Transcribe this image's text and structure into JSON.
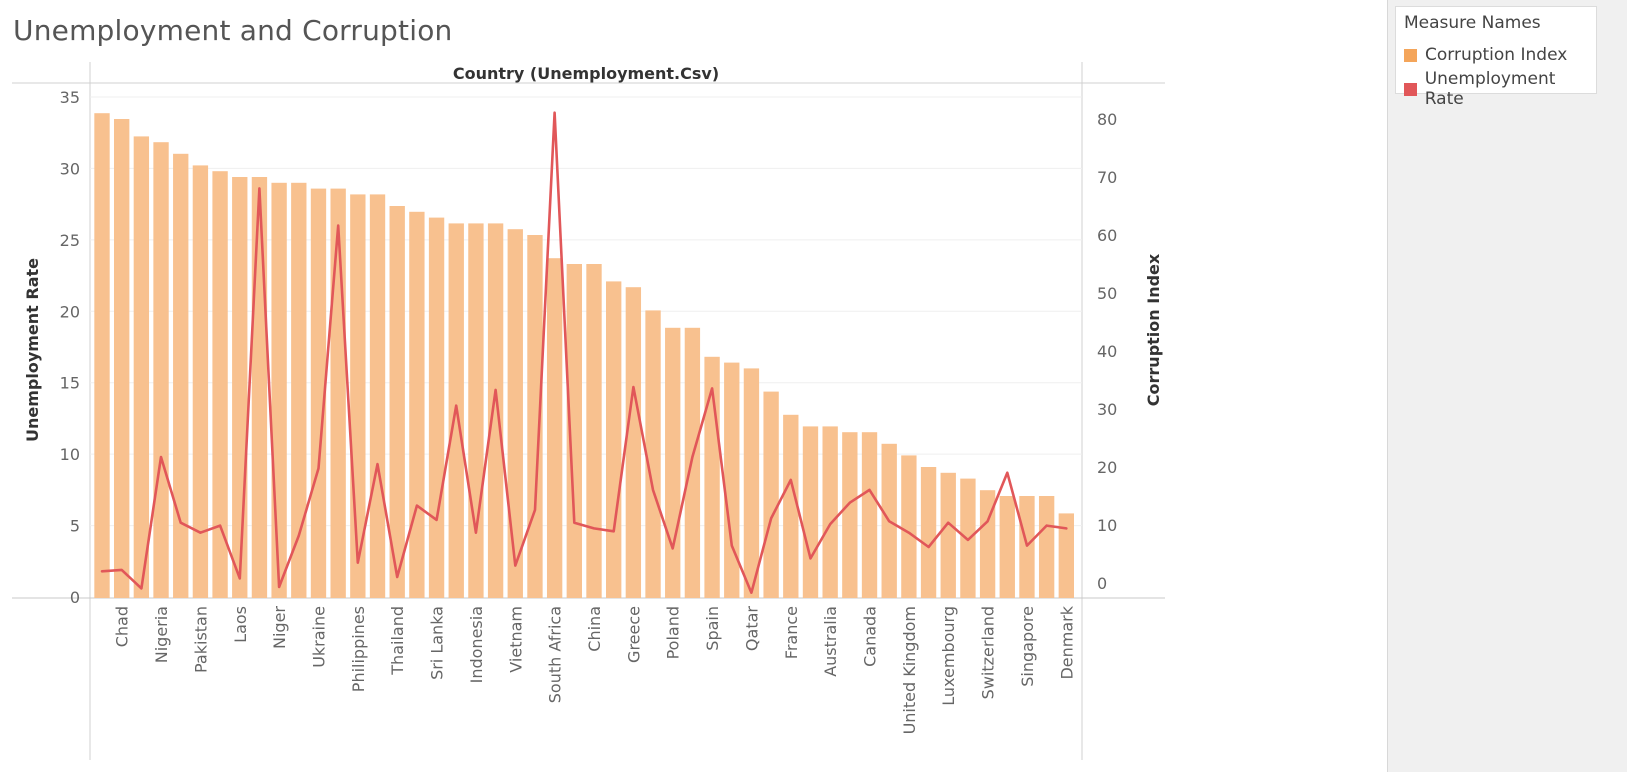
{
  "title": "Unemployment and Corruption",
  "legend": {
    "title": "Measure Names",
    "items": [
      {
        "label": "Corruption Index",
        "color": "#f4a55a"
      },
      {
        "label": "Unemployment Rate",
        "color": "#e15759"
      }
    ]
  },
  "chart_data": {
    "type": "bar+line",
    "header": "Country (Unemployment.Csv)",
    "ylabel_left": "Unemployment Rate",
    "ylabel_right": "Corruption Index",
    "ylim_left": [
      0,
      35
    ],
    "yticks_left": [
      0,
      5,
      10,
      15,
      20,
      25,
      30,
      35
    ],
    "ylim_right": [
      0,
      85
    ],
    "yticks_right": [
      0,
      10,
      20,
      30,
      40,
      50,
      60,
      70,
      80
    ],
    "visible_category_labels": [
      "Chad",
      "Nigeria",
      "Pakistan",
      "Laos",
      "Niger",
      "Ukraine",
      "Philippines",
      "Thailand",
      "Sri Lanka",
      "Indonesia",
      "Vietnam",
      "South Africa",
      "China",
      "Greece",
      "Poland",
      "Spain",
      "Qatar",
      "France",
      "Australia",
      "Canada",
      "United Kingdom",
      "Luxembourg",
      "Switzerland",
      "Singapore",
      "Denmark"
    ],
    "categories": [
      "",
      "Chad",
      "",
      "Nigeria",
      "",
      "Pakistan",
      "",
      "Laos",
      "",
      "Niger",
      "",
      "Ukraine",
      "",
      "Philippines",
      "",
      "Thailand",
      "",
      "Sri Lanka",
      "",
      "Indonesia",
      "",
      "Vietnam",
      "",
      "South Africa",
      "",
      "China",
      "",
      "Greece",
      "",
      "Poland",
      "",
      "Spain",
      "",
      "Qatar",
      "",
      "France",
      "",
      "Australia",
      "",
      "Canada",
      "",
      "United Kingdom",
      "",
      "Luxembourg",
      "",
      "Switzerland",
      "",
      "Singapore",
      "",
      "Denmark"
    ],
    "series": [
      {
        "name": "Corruption Index",
        "kind": "bar",
        "axis": "right",
        "color": "#f8c18f",
        "values": [
          81,
          80,
          77,
          76,
          74,
          72,
          71,
          70,
          70,
          69,
          69,
          68,
          68,
          67,
          67,
          65,
          64,
          63,
          62,
          62,
          62,
          61,
          60,
          56,
          55,
          55,
          52,
          51,
          47,
          44,
          44,
          39,
          38,
          37,
          33,
          29,
          27,
          27,
          26,
          26,
          24,
          22,
          20,
          19,
          18,
          16,
          15,
          15,
          15,
          12
        ]
      },
      {
        "name": "Unemployment Rate",
        "kind": "line",
        "axis": "left",
        "color": "#e15759",
        "values": [
          1.8,
          1.9,
          0.6,
          9.8,
          5.2,
          4.5,
          5.0,
          1.3,
          28.6,
          0.7,
          4.3,
          9.0,
          26.0,
          2.4,
          9.3,
          1.4,
          6.4,
          5.4,
          13.4,
          4.5,
          14.5,
          2.2,
          6.1,
          33.9,
          5.2,
          4.8,
          4.6,
          14.7,
          7.5,
          3.4,
          9.8,
          14.6,
          3.6,
          0.3,
          5.5,
          8.2,
          2.7,
          5.1,
          6.6,
          7.5,
          5.3,
          4.5,
          3.5,
          5.2,
          4.0,
          5.3,
          8.7,
          3.6,
          5.0,
          4.8
        ]
      }
    ],
    "grid": true,
    "legend_position": "right"
  }
}
